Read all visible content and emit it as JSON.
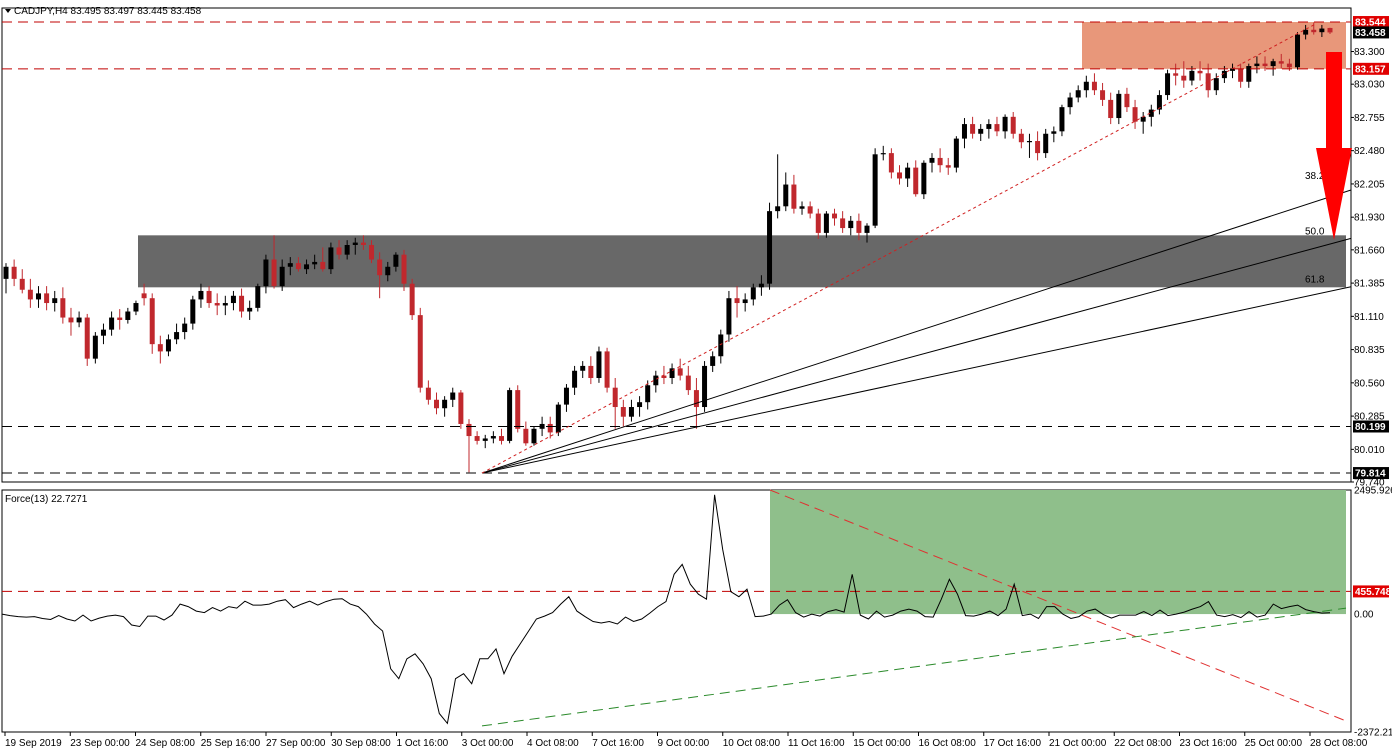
{
  "chart_data": [
    {
      "type": "candlestick",
      "title": "CADJPY,H4  83.495 83.497 83.445 83.458",
      "ylim": [
        79.74,
        83.66
      ],
      "y_ticks": [
        "83.300",
        "83.030",
        "82.755",
        "82.480",
        "82.205",
        "81.930",
        "81.660",
        "81.385",
        "81.110",
        "80.835",
        "80.560",
        "80.285",
        "80.010",
        "79.740"
      ],
      "x_ticks": [
        "19 Sep 2019",
        "23 Sep 00:00",
        "24 Sep 08:00",
        "25 Sep 16:00",
        "27 Sep 00:00",
        "30 Sep 08:00",
        "1 Oct 16:00",
        "3 Oct 00:00",
        "4 Oct 08:00",
        "7 Oct 16:00",
        "9 Oct 00:00",
        "10 Oct 08:00",
        "11 Oct 16:00",
        "15 Oct 00:00",
        "16 Oct 08:00",
        "17 Oct 16:00",
        "21 Oct 00:00",
        "22 Oct 08:00",
        "23 Oct 16:00",
        "25 Oct 00:00",
        "28 Oct 08:00"
      ],
      "horizontal_levels": [
        {
          "label": "83.544",
          "value": 83.544,
          "color": "#c00000",
          "tag_bg": "#e00000",
          "tag_fg": "#ffffff"
        },
        {
          "label": "83.458",
          "value": 83.458,
          "color": "#000000",
          "tag_bg": "#000000",
          "tag_fg": "#ffffff"
        },
        {
          "label": "83.157",
          "value": 83.157,
          "color": "#c00000",
          "tag_bg": "#e00000",
          "tag_fg": "#ffffff"
        },
        {
          "label": "80.199",
          "value": 80.199,
          "color": "#000000",
          "tag_bg": "#000000",
          "tag_fg": "#ffffff"
        },
        {
          "label": "79.814",
          "value": 79.814,
          "color": "#000000",
          "tag_bg": "#000000",
          "tag_fg": "#ffffff"
        }
      ],
      "zones": [
        {
          "name": "resistance",
          "from": 83.157,
          "to": 83.544,
          "color": "#e8977a"
        },
        {
          "name": "support",
          "from": 81.35,
          "to": 81.78,
          "color": "#686868"
        }
      ],
      "fibonacci_fan": {
        "anchor_value": 79.814,
        "labels": [
          "38.2",
          "50.0",
          "61.8"
        ],
        "targets": [
          82.155,
          81.755,
          81.355
        ]
      },
      "candles": [
        [
          81.42,
          81.55,
          81.3,
          81.52
        ],
        [
          81.52,
          81.58,
          81.36,
          81.42
        ],
        [
          81.42,
          81.5,
          81.3,
          81.33
        ],
        [
          81.33,
          81.42,
          81.18,
          81.25
        ],
        [
          81.25,
          81.36,
          81.18,
          81.3
        ],
        [
          81.3,
          81.36,
          81.16,
          81.22
        ],
        [
          81.22,
          81.32,
          81.15,
          81.26
        ],
        [
          81.26,
          81.35,
          81.05,
          81.1
        ],
        [
          81.1,
          81.18,
          80.95,
          81.06
        ],
        [
          81.06,
          81.15,
          81.02,
          81.1
        ],
        [
          81.1,
          81.13,
          80.7,
          80.76
        ],
        [
          80.76,
          80.98,
          80.72,
          80.95
        ],
        [
          80.95,
          81.05,
          80.88,
          81.0
        ],
        [
          81.0,
          81.15,
          80.95,
          81.1
        ],
        [
          81.1,
          81.17,
          81.0,
          81.08
        ],
        [
          81.08,
          81.18,
          81.05,
          81.15
        ],
        [
          81.15,
          81.24,
          81.12,
          81.22
        ],
        [
          81.3,
          81.38,
          81.2,
          81.26
        ],
        [
          81.26,
          81.3,
          80.8,
          80.88
        ],
        [
          80.88,
          80.95,
          80.72,
          80.82
        ],
        [
          80.82,
          80.96,
          80.78,
          80.92
        ],
        [
          80.92,
          81.05,
          80.88,
          80.98
        ],
        [
          80.98,
          81.1,
          80.92,
          81.05
        ],
        [
          81.05,
          81.28,
          81.0,
          81.25
        ],
        [
          81.25,
          81.38,
          81.18,
          81.32
        ],
        [
          81.32,
          81.36,
          81.18,
          81.22
        ],
        [
          81.22,
          81.3,
          81.12,
          81.2
        ],
        [
          81.2,
          81.28,
          81.12,
          81.22
        ],
        [
          81.22,
          81.32,
          81.16,
          81.28
        ],
        [
          81.28,
          81.34,
          81.1,
          81.15
        ],
        [
          81.15,
          81.24,
          81.08,
          81.18
        ],
        [
          81.18,
          81.38,
          81.15,
          81.36
        ],
        [
          81.36,
          81.62,
          81.3,
          81.58
        ],
        [
          81.58,
          81.78,
          81.34,
          81.36
        ],
        [
          81.36,
          81.58,
          81.32,
          81.52
        ],
        [
          81.52,
          81.6,
          81.45,
          81.55
        ],
        [
          81.55,
          81.6,
          81.48,
          81.5
        ],
        [
          81.5,
          81.58,
          81.46,
          81.54
        ],
        [
          81.54,
          81.62,
          81.5,
          81.56
        ],
        [
          81.56,
          81.68,
          81.48,
          81.5
        ],
        [
          81.5,
          81.72,
          81.46,
          81.68
        ],
        [
          81.68,
          81.74,
          81.58,
          81.62
        ],
        [
          81.62,
          81.74,
          81.58,
          81.7
        ],
        [
          81.7,
          81.76,
          81.62,
          81.72
        ],
        [
          81.72,
          81.78,
          81.66,
          81.7
        ],
        [
          81.7,
          81.74,
          81.55,
          81.58
        ],
        [
          81.58,
          81.64,
          81.26,
          81.45
        ],
        [
          81.45,
          81.56,
          81.4,
          81.52
        ],
        [
          81.52,
          81.64,
          81.48,
          81.62
        ],
        [
          81.62,
          81.66,
          81.32,
          81.38
        ],
        [
          81.38,
          81.42,
          81.08,
          81.12
        ],
        [
          81.12,
          81.18,
          80.48,
          80.52
        ],
        [
          80.52,
          80.58,
          80.38,
          80.42
        ],
        [
          80.42,
          80.48,
          80.3,
          80.35
        ],
        [
          80.35,
          80.45,
          80.28,
          80.42
        ],
        [
          80.42,
          80.52,
          80.36,
          80.48
        ],
        [
          80.48,
          80.5,
          80.18,
          80.22
        ],
        [
          80.22,
          80.26,
          79.82,
          80.12
        ],
        [
          80.12,
          80.16,
          80.05,
          80.08
        ],
        [
          80.08,
          80.13,
          80.02,
          80.1
        ],
        [
          80.1,
          80.16,
          80.06,
          80.12
        ],
        [
          80.12,
          80.18,
          80.05,
          80.08
        ],
        [
          80.08,
          80.52,
          80.06,
          80.5
        ],
        [
          80.5,
          80.54,
          80.15,
          80.18
        ],
        [
          80.18,
          80.24,
          80.04,
          80.06
        ],
        [
          80.06,
          80.2,
          80.04,
          80.18
        ],
        [
          80.18,
          80.28,
          80.12,
          80.22
        ],
        [
          80.22,
          80.28,
          80.1,
          80.15
        ],
        [
          80.15,
          80.4,
          80.12,
          80.38
        ],
        [
          80.38,
          80.55,
          80.32,
          80.52
        ],
        [
          80.52,
          80.7,
          80.46,
          80.66
        ],
        [
          80.66,
          80.74,
          80.6,
          80.7
        ],
        [
          80.7,
          80.78,
          80.55,
          80.6
        ],
        [
          80.6,
          80.86,
          80.56,
          80.82
        ],
        [
          80.82,
          80.85,
          80.48,
          80.52
        ],
        [
          80.52,
          80.6,
          80.18,
          80.36
        ],
        [
          80.36,
          80.42,
          80.2,
          80.28
        ],
        [
          80.28,
          80.42,
          80.24,
          80.36
        ],
        [
          80.36,
          80.45,
          80.28,
          80.4
        ],
        [
          80.4,
          80.58,
          80.34,
          80.54
        ],
        [
          80.54,
          80.66,
          80.48,
          80.62
        ],
        [
          80.62,
          80.7,
          80.55,
          80.6
        ],
        [
          80.6,
          80.72,
          80.55,
          80.68
        ],
        [
          80.68,
          80.76,
          80.58,
          80.62
        ],
        [
          80.62,
          80.7,
          80.46,
          80.5
        ],
        [
          80.5,
          80.6,
          80.18,
          80.36
        ],
        [
          80.36,
          80.74,
          80.32,
          80.7
        ],
        [
          80.7,
          80.82,
          80.65,
          80.78
        ],
        [
          80.78,
          81.0,
          80.72,
          80.96
        ],
        [
          80.96,
          81.32,
          80.9,
          81.26
        ],
        [
          81.26,
          81.36,
          81.1,
          81.22
        ],
        [
          81.22,
          81.3,
          81.15,
          81.25
        ],
        [
          81.25,
          81.38,
          81.2,
          81.35
        ],
        [
          81.35,
          81.45,
          81.28,
          81.38
        ],
        [
          81.38,
          82.05,
          81.33,
          81.98
        ],
        [
          81.98,
          82.45,
          81.92,
          82.02
        ],
        [
          82.02,
          82.3,
          81.98,
          82.2
        ],
        [
          82.2,
          82.28,
          81.96,
          82.0
        ],
        [
          82.0,
          82.06,
          81.95,
          82.02
        ],
        [
          82.02,
          82.06,
          81.92,
          81.96
        ],
        [
          81.96,
          82.0,
          81.75,
          81.8
        ],
        [
          81.8,
          81.98,
          81.76,
          81.96
        ],
        [
          81.96,
          82.0,
          81.86,
          81.92
        ],
        [
          81.92,
          81.98,
          81.8,
          81.84
        ],
        [
          81.84,
          81.94,
          81.78,
          81.9
        ],
        [
          81.9,
          81.96,
          81.74,
          81.8
        ],
        [
          81.8,
          81.88,
          81.72,
          81.86
        ],
        [
          81.86,
          82.5,
          81.84,
          82.45
        ],
        [
          82.45,
          82.52,
          82.4,
          82.46
        ],
        [
          82.46,
          82.5,
          82.25,
          82.3
        ],
        [
          82.3,
          82.36,
          82.2,
          82.25
        ],
        [
          82.25,
          82.38,
          82.18,
          82.34
        ],
        [
          82.34,
          82.4,
          82.1,
          82.12
        ],
        [
          82.12,
          82.4,
          82.08,
          82.38
        ],
        [
          82.38,
          82.46,
          82.3,
          82.42
        ],
        [
          82.42,
          82.5,
          82.3,
          82.36
        ],
        [
          82.36,
          82.42,
          82.28,
          82.34
        ],
        [
          82.34,
          82.6,
          82.3,
          82.58
        ],
        [
          82.58,
          82.75,
          82.5,
          82.7
        ],
        [
          82.7,
          82.76,
          82.58,
          82.62
        ],
        [
          82.62,
          82.7,
          82.56,
          82.66
        ],
        [
          82.66,
          82.74,
          82.58,
          82.7
        ],
        [
          82.7,
          82.76,
          82.6,
          82.64
        ],
        [
          82.64,
          82.78,
          82.58,
          82.76
        ],
        [
          82.76,
          82.8,
          82.58,
          82.62
        ],
        [
          82.62,
          82.66,
          82.5,
          82.55
        ],
        [
          82.55,
          82.62,
          82.42,
          82.56
        ],
        [
          82.56,
          82.64,
          82.4,
          82.46
        ],
        [
          82.46,
          82.66,
          82.42,
          82.62
        ],
        [
          82.62,
          82.68,
          82.55,
          82.64
        ],
        [
          82.64,
          82.86,
          82.6,
          82.84
        ],
        [
          82.84,
          82.96,
          82.78,
          82.92
        ],
        [
          82.92,
          83.02,
          82.88,
          82.98
        ],
        [
          82.98,
          83.1,
          82.92,
          83.05
        ],
        [
          83.05,
          83.12,
          82.94,
          82.98
        ],
        [
          82.98,
          83.04,
          82.85,
          82.9
        ],
        [
          82.9,
          82.96,
          82.7,
          82.75
        ],
        [
          82.75,
          82.98,
          82.7,
          82.95
        ],
        [
          82.95,
          83.0,
          82.8,
          82.84
        ],
        [
          82.84,
          82.9,
          82.66,
          82.72
        ],
        [
          82.72,
          82.8,
          82.62,
          82.76
        ],
        [
          82.76,
          82.86,
          82.68,
          82.82
        ],
        [
          82.82,
          82.98,
          82.78,
          82.94
        ],
        [
          82.94,
          83.15,
          82.9,
          83.12
        ],
        [
          83.12,
          83.2,
          83.02,
          83.1
        ],
        [
          83.1,
          83.22,
          83.0,
          83.06
        ],
        [
          83.06,
          83.18,
          83.02,
          83.14
        ],
        [
          83.14,
          83.22,
          83.06,
          83.12
        ],
        [
          83.12,
          83.2,
          82.92,
          82.98
        ],
        [
          82.98,
          83.12,
          82.94,
          83.08
        ],
        [
          83.08,
          83.18,
          83.04,
          83.14
        ],
        [
          83.14,
          83.2,
          83.08,
          83.16
        ],
        [
          83.16,
          83.2,
          83.0,
          83.05
        ],
        [
          83.05,
          83.2,
          83.0,
          83.18
        ],
        [
          83.18,
          83.26,
          83.12,
          83.2
        ],
        [
          83.2,
          83.26,
          83.14,
          83.18
        ],
        [
          83.18,
          83.24,
          83.1,
          83.22
        ],
        [
          83.22,
          83.28,
          83.16,
          83.2
        ],
        [
          83.2,
          83.24,
          83.14,
          83.17
        ],
        [
          83.17,
          83.46,
          83.15,
          83.44
        ],
        [
          83.44,
          83.52,
          83.4,
          83.48
        ],
        [
          83.48,
          83.54,
          83.44,
          83.46
        ],
        [
          83.46,
          83.52,
          83.42,
          83.49
        ],
        [
          83.495,
          83.497,
          83.445,
          83.458
        ]
      ]
    },
    {
      "type": "line",
      "title": "Force(13) 22.7271",
      "ylim": [
        -2372.21,
        2495.926
      ],
      "y_ticks": [
        "2495.926",
        "0.00",
        "-2372.21"
      ],
      "horizontal_levels": [
        {
          "label": "455.748",
          "value": 455.748,
          "color": "#c00000",
          "tag_bg": "#e00000",
          "tag_fg": "#ffffff"
        }
      ],
      "zone": {
        "from": 0,
        "to": 2495.926,
        "color": "#8fbf8b"
      },
      "values": [
        0,
        -30,
        -50,
        -60,
        -50,
        -90,
        -110,
        -30,
        -100,
        -140,
        -20,
        -140,
        -80,
        -40,
        -20,
        -50,
        -220,
        -250,
        -40,
        -40,
        -120,
        -20,
        200,
        150,
        60,
        30,
        130,
        60,
        150,
        120,
        260,
        180,
        180,
        200,
        260,
        290,
        130,
        200,
        260,
        180,
        250,
        300,
        310,
        200,
        150,
        0,
        -200,
        -340,
        -1100,
        -1300,
        -900,
        -800,
        -1000,
        -1300,
        -2000,
        -2200,
        -1300,
        -1200,
        -1400,
        -900,
        -900,
        -700,
        -1200,
        -850,
        -600,
        -350,
        -100,
        -40,
        30,
        200,
        350,
        60,
        -50,
        -150,
        -180,
        -150,
        -200,
        -60,
        -150,
        -100,
        20,
        150,
        250,
        800,
        1000,
        600,
        400,
        300,
        2400,
        1300,
        450,
        350,
        500,
        -50,
        -40,
        0,
        180,
        290,
        30,
        -60,
        0,
        -40,
        50,
        90,
        40,
        800,
        -20,
        -100,
        60,
        -60,
        -20,
        60,
        100,
        60,
        -50,
        -60,
        300,
        700,
        400,
        -30,
        -40,
        0,
        60,
        -30,
        100,
        600,
        -30,
        0,
        -90,
        150,
        150,
        0,
        -90,
        -50,
        60,
        100,
        -10,
        -80,
        -20,
        -20,
        -20,
        50,
        -30,
        80,
        -30,
        0,
        40,
        100,
        150,
        250,
        -20,
        -50,
        -10,
        -70,
        50,
        -60,
        -20,
        200,
        110,
        150,
        180,
        90,
        50,
        20,
        25
      ]
    }
  ]
}
